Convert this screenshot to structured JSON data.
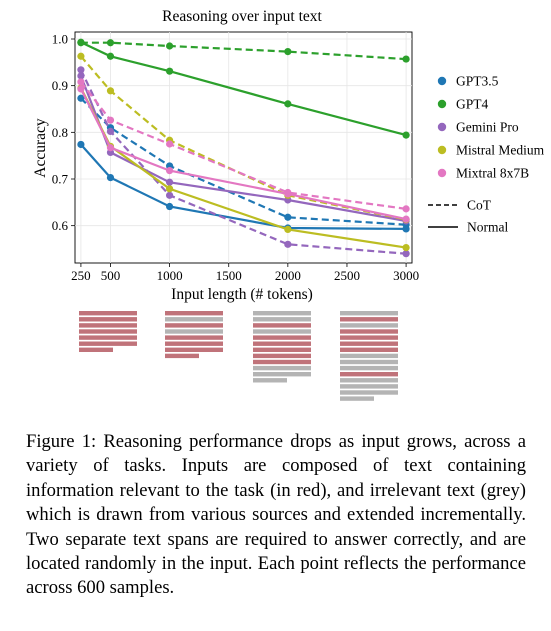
{
  "chart_data": {
    "type": "line",
    "title": "Reasoning over input text",
    "xlabel": "Input length (# tokens)",
    "ylabel": "Accuracy",
    "x": [
      250,
      500,
      1000,
      2000,
      3000
    ],
    "xticks": [
      250,
      500,
      1000,
      1500,
      2000,
      2500,
      3000
    ],
    "yticks": [
      0.6,
      0.7,
      0.8,
      0.9,
      1.0
    ],
    "xlim": [
      200,
      3050
    ],
    "ylim": [
      0.52,
      1.015
    ],
    "grid": true,
    "legend_position": "right",
    "series": [
      {
        "name": "GPT3.5",
        "color": "#1f77b4",
        "cot": [
          0.873,
          0.81,
          0.728,
          0.618,
          0.602
        ],
        "normal": [
          0.774,
          0.703,
          0.641,
          0.595,
          0.593
        ]
      },
      {
        "name": "GPT4",
        "color": "#2ca02c",
        "cot": [
          0.992,
          0.992,
          0.985,
          0.973,
          0.957
        ],
        "normal": [
          0.993,
          0.963,
          0.931,
          0.861,
          0.794
        ]
      },
      {
        "name": "Gemini Pro",
        "color": "#9467bd",
        "cot": [
          0.934,
          0.802,
          0.665,
          0.56,
          0.54
        ],
        "normal": [
          0.921,
          0.757,
          0.693,
          0.655,
          0.61
        ]
      },
      {
        "name": "Mistral Medium",
        "color": "#bcbd22",
        "cot": [
          0.963,
          0.889,
          0.783,
          0.665,
          0.613
        ],
        "normal": [
          0.895,
          0.77,
          0.679,
          0.592,
          0.553
        ]
      },
      {
        "name": "Mixtral 8x7B",
        "color": "#e377c2",
        "cot": [
          0.908,
          0.826,
          0.775,
          0.671,
          0.636
        ],
        "normal": [
          0.893,
          0.767,
          0.718,
          0.668,
          0.614
        ]
      }
    ],
    "style_legend": [
      {
        "label": "CoT",
        "dash": true
      },
      {
        "label": "Normal",
        "dash": false
      }
    ]
  },
  "token_illustrations": {
    "relevant_color": "#c0737a",
    "irrelevant_color": "#b4b4b4"
  },
  "caption": "Figure 1: Reasoning performance drops as input grows, across a variety of tasks. Inputs are composed of text containing information relevant to the task (in red), and irrelevant text (grey) which is drawn from various sources and extended incrementally. Two separate text spans are required to answer correctly, and are located randomly in the input. Each point reflects the performance across 600 samples."
}
